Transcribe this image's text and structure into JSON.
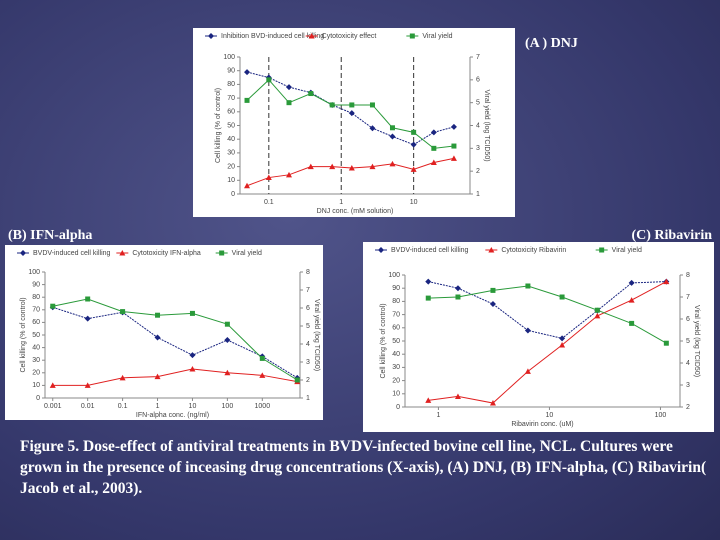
{
  "chart_data": [
    {
      "type": "line",
      "label": "(A ) DNJ",
      "xlabel": "DNJ conc. (mM solution)",
      "ylabel": "Cell killing (% of control)",
      "y2label": "Viral yield (log TCID50)",
      "xscale": "log",
      "xgrid": true,
      "x": [
        0.05,
        0.1,
        0.19,
        0.38,
        0.75,
        1.4,
        2.7,
        5.1,
        10,
        19,
        36
      ],
      "xlim": [
        0.04,
        60
      ],
      "xticks": [
        0.1,
        1,
        10
      ],
      "ylim": [
        0,
        100
      ],
      "yticks": [
        0,
        10,
        20,
        30,
        40,
        50,
        60,
        70,
        80,
        90,
        100
      ],
      "y2lim": [
        1,
        7
      ],
      "y2ticks": [
        1,
        2,
        3,
        4,
        5,
        6,
        7
      ],
      "series": [
        {
          "name": "Inhibition BVD-induced cell killing",
          "color": "#1a2580",
          "marker": "diamond",
          "values": [
            89,
            85,
            78,
            74,
            65,
            59,
            48,
            42,
            36,
            45,
            49
          ]
        },
        {
          "name": "Cytotoxicity effect",
          "color": "#e02020",
          "marker": "triangle",
          "values": [
            6,
            12,
            14,
            20,
            20,
            19,
            20,
            22,
            18,
            23,
            26
          ]
        },
        {
          "name": "Viral yield",
          "color": "#2a9a3a",
          "marker": "square",
          "axis": "y2",
          "values": [
            5.1,
            6.0,
            5.0,
            5.4,
            4.9,
            4.9,
            4.9,
            3.9,
            3.7,
            3.0,
            3.1
          ]
        }
      ]
    },
    {
      "type": "line",
      "label": "(B) IFN-alpha",
      "xlabel": "IFN-alpha conc. (ng/ml)",
      "ylabel": "Cell killing (% of control)",
      "y2label": "Viral yield (log TCID50)",
      "xscale": "log",
      "xgrid": false,
      "x": [
        0.001,
        0.01,
        0.1,
        1,
        10,
        100,
        1000,
        10000
      ],
      "xlim": [
        0.0006,
        12000
      ],
      "xticks": [
        0.001,
        0.01,
        0.1,
        1,
        10,
        100,
        1000
      ],
      "ylim": [
        0,
        100
      ],
      "yticks": [
        0,
        10,
        20,
        30,
        40,
        50,
        60,
        70,
        80,
        90,
        100
      ],
      "y2lim": [
        1,
        8
      ],
      "y2ticks": [
        1,
        2,
        3,
        4,
        5,
        6,
        7,
        8
      ],
      "series": [
        {
          "name": "BVDV-induced cell killing",
          "color": "#1a2580",
          "marker": "diamond",
          "values": [
            72,
            63,
            68,
            48,
            34,
            46,
            33,
            16
          ]
        },
        {
          "name": "Cytotoxicity IFN-alpha",
          "color": "#e02020",
          "marker": "triangle",
          "values": [
            10,
            10,
            16,
            17,
            23,
            20,
            18,
            13
          ]
        },
        {
          "name": "Viral yield",
          "color": "#2a9a3a",
          "marker": "square",
          "axis": "y2",
          "values": [
            6.1,
            6.5,
            5.8,
            5.6,
            5.7,
            5.1,
            3.2,
            2.0
          ]
        }
      ]
    },
    {
      "type": "line",
      "label": "(C) Ribavirin",
      "xlabel": "Ribavirin conc. (uM)",
      "ylabel": "Cell killing (% of control)",
      "y2label": "Viral yield (log TCID50)",
      "xscale": "log",
      "xgrid": false,
      "x": [
        0.81,
        1.5,
        3.1,
        6.4,
        13,
        27,
        55,
        113
      ],
      "xlim": [
        0.5,
        150
      ],
      "xticks": [
        1,
        10,
        100
      ],
      "ylim": [
        0,
        100
      ],
      "yticks": [
        0,
        10,
        20,
        30,
        40,
        50,
        60,
        70,
        80,
        90,
        100
      ],
      "y2lim": [
        2,
        8
      ],
      "y2ticks": [
        2,
        3,
        4,
        5,
        6,
        7,
        8
      ],
      "series": [
        {
          "name": "BVDV-induced cell killing",
          "color": "#1a2580",
          "marker": "diamond",
          "values": [
            95,
            90,
            78,
            58,
            52,
            73,
            94,
            95
          ]
        },
        {
          "name": "Cytotoxicity Ribavirin",
          "color": "#e02020",
          "marker": "triangle",
          "values": [
            5,
            8,
            3,
            27,
            47,
            69,
            81,
            95
          ]
        },
        {
          "name": "Viral yield",
          "color": "#2a9a3a",
          "marker": "square",
          "axis": "y2",
          "values": [
            6.95,
            7.0,
            7.3,
            7.5,
            7.0,
            6.4,
            5.8,
            4.9
          ]
        }
      ]
    }
  ],
  "caption": "Figure 5. Dose-effect of antiviral treatments in BVDV-infected bovine cell line, NCL. Cultures were grown in the presence of inceasing drug concentrations (X-axis), (A) DNJ, (B) IFN-alpha, (C) Ribavirin( Jacob et al., 2003)."
}
